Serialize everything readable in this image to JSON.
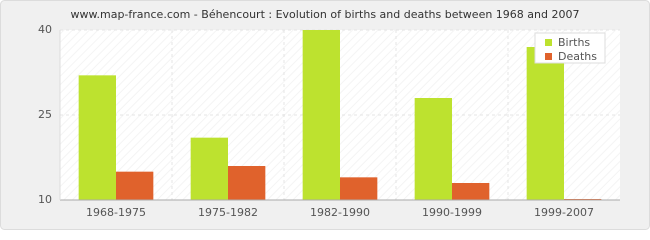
{
  "chart_data": {
    "type": "bar",
    "title": "www.map-france.com - Béhencourt : Evolution of births and deaths between 1968 and 2007",
    "categories": [
      "1968-1975",
      "1975-1982",
      "1982-1990",
      "1990-1999",
      "1999-2007"
    ],
    "series": [
      {
        "name": "Births",
        "color": "#bde22f",
        "values": [
          32,
          21,
          40,
          28,
          37
        ]
      },
      {
        "name": "Deaths",
        "color": "#e0622c",
        "values": [
          15,
          16,
          14,
          13,
          10
        ]
      }
    ],
    "ylim": [
      10,
      40
    ],
    "yticks": [
      10,
      25,
      40
    ],
    "grid": true,
    "legend": "top-right"
  }
}
